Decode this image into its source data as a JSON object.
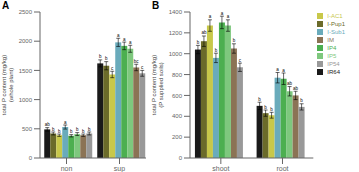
{
  "chart_data": [
    {
      "type": "bar",
      "title": "A",
      "ylabel": "total P content (mg/kg)\n(whole plant)",
      "categories": [
        "non",
        "sup"
      ],
      "series": [
        {
          "name": "IR64",
          "color": "#1a1a1a",
          "values": [
            490,
            1620
          ],
          "errors": [
            30,
            60
          ],
          "annotations": [
            "ab",
            "b"
          ]
        },
        {
          "name": "I-Pup1",
          "color": "#6b6b2a",
          "values": [
            420,
            1580
          ],
          "errors": [
            25,
            70
          ],
          "annotations": [
            "b",
            "b"
          ]
        },
        {
          "name": "I-AC1",
          "color": "#c8c84a",
          "values": [
            390,
            1430
          ],
          "errors": [
            20,
            55
          ],
          "annotations": [
            "b",
            "c"
          ]
        },
        {
          "name": "I-Sub1",
          "color": "#6aabbb",
          "values": [
            530,
            1980
          ],
          "errors": [
            35,
            70
          ],
          "annotations": [
            "a",
            "a"
          ]
        },
        {
          "name": "IP4",
          "color": "#4caf50",
          "values": [
            380,
            1920
          ],
          "errors": [
            20,
            65
          ],
          "annotations": [
            "b",
            "a"
          ]
        },
        {
          "name": "IP5",
          "color": "#7ec87e",
          "values": [
            410,
            1870
          ],
          "errors": [
            25,
            60
          ],
          "annotations": [
            "b",
            "a"
          ]
        },
        {
          "name": "IM",
          "color": "#8b7355",
          "values": [
            390,
            1550
          ],
          "errors": [
            20,
            55
          ],
          "annotations": [
            "b",
            "bc"
          ]
        },
        {
          "name": "IP54",
          "color": "#999999",
          "values": [
            420,
            1450
          ],
          "errors": [
            25,
            50
          ],
          "annotations": [
            "b",
            "c"
          ]
        }
      ],
      "ylim": [
        0,
        2500
      ],
      "yticks": [
        0,
        500,
        1000,
        1500,
        2000,
        2500
      ],
      "grid": false
    },
    {
      "type": "bar",
      "title": "B",
      "ylabel": "total P content (mg/kg)\n(P supplied soils)",
      "categories": [
        "shoot",
        "root"
      ],
      "series": [
        {
          "name": "IR64",
          "color": "#1a1a1a",
          "values": [
            1040,
            500
          ],
          "errors": [
            40,
            35
          ],
          "annotations": [
            "b",
            "b"
          ]
        },
        {
          "name": "I-Pup1",
          "color": "#6b6b2a",
          "values": [
            1120,
            430
          ],
          "errors": [
            50,
            30
          ],
          "annotations": [
            "ab",
            "b"
          ]
        },
        {
          "name": "I-AC1",
          "color": "#c8c84a",
          "values": [
            1270,
            410
          ],
          "errors": [
            55,
            28
          ],
          "annotations": [
            "a",
            "b"
          ]
        },
        {
          "name": "I-Sub1",
          "color": "#6aabbb",
          "values": [
            960,
            770
          ],
          "errors": [
            45,
            50
          ],
          "annotations": [
            "b",
            "a"
          ]
        },
        {
          "name": "IP4",
          "color": "#4caf50",
          "values": [
            1300,
            760
          ],
          "errors": [
            60,
            55
          ],
          "annotations": [
            "a",
            "a"
          ]
        },
        {
          "name": "IP5",
          "color": "#7ec87e",
          "values": [
            1270,
            640
          ],
          "errors": [
            55,
            45
          ],
          "annotations": [
            "a",
            "ab"
          ]
        },
        {
          "name": "IM",
          "color": "#8b7355",
          "values": [
            1050,
            600
          ],
          "errors": [
            45,
            40
          ],
          "annotations": [
            "b",
            "ab"
          ]
        },
        {
          "name": "IP54",
          "color": "#999999",
          "values": [
            870,
            490
          ],
          "errors": [
            40,
            30
          ],
          "annotations": [
            "c",
            "b"
          ]
        }
      ],
      "ylim": [
        0,
        1400
      ],
      "yticks": [
        0,
        200,
        400,
        600,
        800,
        1000,
        1200,
        1400
      ],
      "grid": false,
      "legend": "upper right"
    }
  ]
}
